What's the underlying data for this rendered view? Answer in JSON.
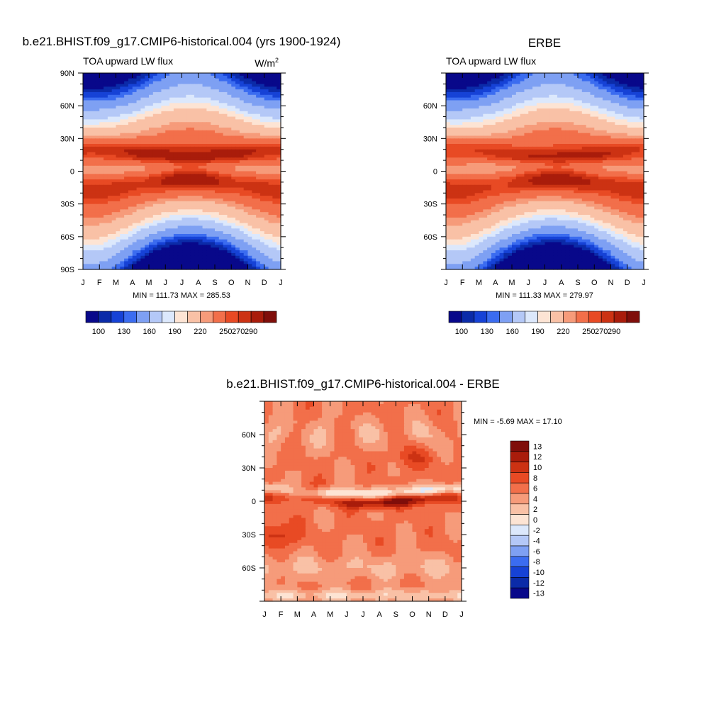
{
  "colors": {
    "abs_palette": [
      "#08088a",
      "#0b2ba8",
      "#1642d6",
      "#3b6cf0",
      "#7ea0f3",
      "#b4c8f7",
      "#dce8fc",
      "#fde4d4",
      "#f9c1a6",
      "#f69b7a",
      "#f26f4a",
      "#e84a24",
      "#cc3213",
      "#a91c0b",
      "#7f0e0a"
    ],
    "diff_palette": [
      "#08088a",
      "#0b2ba8",
      "#1642d6",
      "#3b6cf0",
      "#7ea0f3",
      "#b4c8f7",
      "#dce8fc",
      "#fde4d4",
      "#f9c1a6",
      "#f69b7a",
      "#f26f4a",
      "#e84a24",
      "#cc3213",
      "#a91c0b",
      "#7f0e0a"
    ]
  },
  "chart_data": [
    {
      "type": "heatmap",
      "title": "b.e21.BHIST.f09_g17.CMIP6-historical.004 (yrs 1900-1924)",
      "left_label": "TOA upward LW flux",
      "units_base": "W/m",
      "units_exp": "2",
      "x_ticks": [
        "J",
        "F",
        "M",
        "A",
        "M",
        "J",
        "J",
        "A",
        "S",
        "O",
        "N",
        "D",
        "J"
      ],
      "y_ticks": [
        "90N",
        "60N",
        "30N",
        "0",
        "30S",
        "60S",
        "90S"
      ],
      "y_tick_values": [
        90,
        60,
        30,
        0,
        -30,
        -60,
        -90
      ],
      "ylim": [
        -90,
        90
      ],
      "stats": "MIN = 111.73 MAX = 285.53",
      "colorbar_labels": [
        "100",
        "130",
        "160",
        "190",
        "220",
        "250",
        "270",
        "290"
      ],
      "colorbar_levels": [
        100,
        110,
        120,
        130,
        140,
        160,
        180,
        190,
        200,
        220,
        230,
        250,
        260,
        270,
        280,
        290
      ]
    },
    {
      "type": "heatmap",
      "title": "ERBE",
      "left_label": "TOA upward LW flux",
      "x_ticks": [
        "J",
        "F",
        "M",
        "A",
        "M",
        "J",
        "J",
        "A",
        "S",
        "O",
        "N",
        "D",
        "J"
      ],
      "y_ticks": [
        "60N",
        "30N",
        "0",
        "30S",
        "60S"
      ],
      "y_tick_values": [
        60,
        30,
        0,
        -30,
        -60
      ],
      "ylim": [
        -85,
        85
      ],
      "stats": "MIN = 111.33 MAX = 279.97",
      "colorbar_labels": [
        "100",
        "130",
        "160",
        "190",
        "220",
        "250",
        "270",
        "290"
      ]
    },
    {
      "type": "heatmap",
      "title": "b.e21.BHIST.f09_g17.CMIP6-historical.004 - ERBE",
      "x_ticks": [
        "J",
        "F",
        "M",
        "A",
        "M",
        "J",
        "J",
        "A",
        "S",
        "O",
        "N",
        "D",
        "J"
      ],
      "y_ticks": [
        "60N",
        "30N",
        "0",
        "30S",
        "60S"
      ],
      "y_tick_values": [
        60,
        30,
        0,
        -30,
        -60
      ],
      "ylim": [
        -85,
        85
      ],
      "stats": "MIN =  -5.69 MAX =  17.10",
      "colorbar_labels": [
        "13",
        "12",
        "10",
        "8",
        "6",
        "4",
        "2",
        "0",
        "-2",
        "-4",
        "-6",
        "-8",
        "-10",
        "-12",
        "-13"
      ]
    }
  ]
}
